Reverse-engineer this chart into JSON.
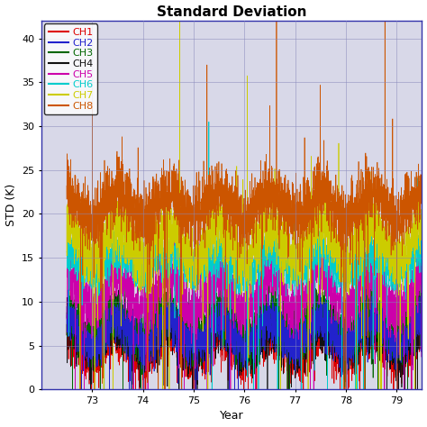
{
  "title": "Standard Deviation",
  "xlabel": "Year",
  "ylabel": "STD (K)",
  "xlim": [
    72.0,
    79.5
  ],
  "ylim": [
    0,
    42
  ],
  "yticks": [
    0,
    5,
    10,
    15,
    20,
    25,
    30,
    35,
    40
  ],
  "xticks": [
    73,
    74,
    75,
    76,
    77,
    78,
    79
  ],
  "channels": [
    "CH1",
    "CH2",
    "CH3",
    "CH4",
    "CH5",
    "CH6",
    "CH7",
    "CH8"
  ],
  "legend_colors": [
    "#dd0000",
    "#2222cc",
    "#006600",
    "#111111",
    "#cc00aa",
    "#00cccc",
    "#cccc00",
    "#cc5500"
  ],
  "base_means": [
    5.0,
    6.5,
    7.5,
    6.0,
    11.0,
    14.5,
    17.0,
    21.0
  ],
  "noise_scale": [
    1.5,
    1.2,
    1.5,
    1.5,
    1.5,
    1.2,
    1.8,
    1.8
  ],
  "seasonal_amp": [
    1.5,
    1.5,
    1.5,
    1.5,
    2.0,
    1.0,
    2.0,
    1.5
  ],
  "seasonal_period": 1.0,
  "n_points": 3000,
  "background_color": "#d8d8e8",
  "grid_color": "#8888bb",
  "spine_color": "#3333aa",
  "title_fontsize": 11,
  "label_fontsize": 9,
  "tick_fontsize": 8,
  "legend_fontsize": 8
}
